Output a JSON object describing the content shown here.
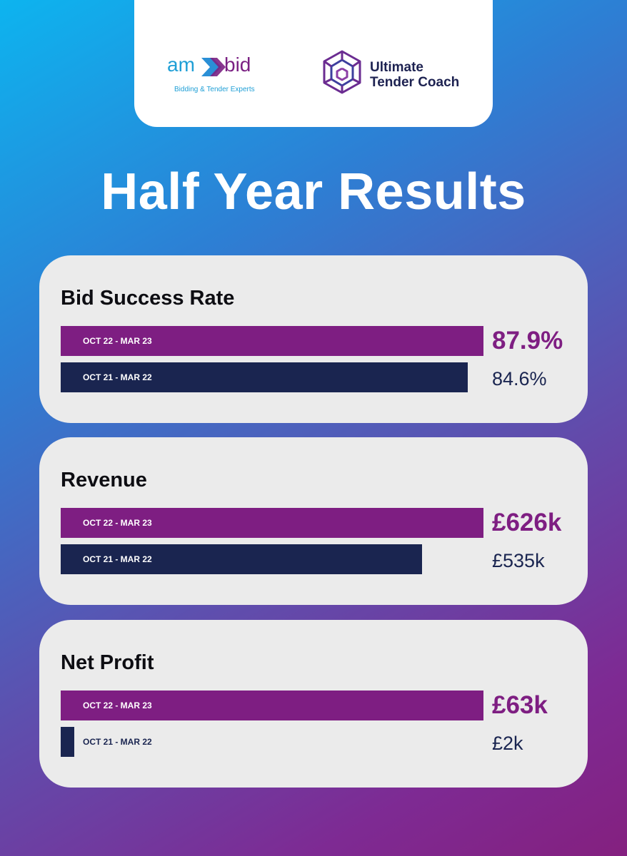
{
  "header": {
    "ambid_logo": {
      "word_am": "am",
      "word_bid": "bid",
      "tagline": "Bidding & Tender Experts"
    },
    "utc_logo": {
      "line1": "Ultimate",
      "line2": "Tender Coach"
    }
  },
  "title": "Half Year Results",
  "colors": {
    "current": "#7e1e82",
    "previous": "#1a2550",
    "card": "#ebebeb"
  },
  "chart_data": [
    {
      "type": "bar",
      "orientation": "horizontal",
      "title": "Bid Success Rate",
      "categories": [
        "OCT 22 - MAR 23",
        "OCT 21 - MAR 22"
      ],
      "values": [
        87.9,
        84.6
      ],
      "value_labels": [
        "87.9%",
        "84.6%"
      ],
      "unit": "%"
    },
    {
      "type": "bar",
      "orientation": "horizontal",
      "title": "Revenue",
      "categories": [
        "OCT 22 - MAR 23",
        "OCT 21 - MAR 22"
      ],
      "values": [
        626,
        535
      ],
      "value_labels": [
        "£626k",
        "£535k"
      ],
      "unit": "£k"
    },
    {
      "type": "bar",
      "orientation": "horizontal",
      "title": "Net Profit",
      "categories": [
        "OCT 22 - MAR 23",
        "OCT 21 - MAR 22"
      ],
      "values": [
        63,
        2
      ],
      "value_labels": [
        "£63k",
        "£2k"
      ],
      "unit": "£k"
    }
  ]
}
